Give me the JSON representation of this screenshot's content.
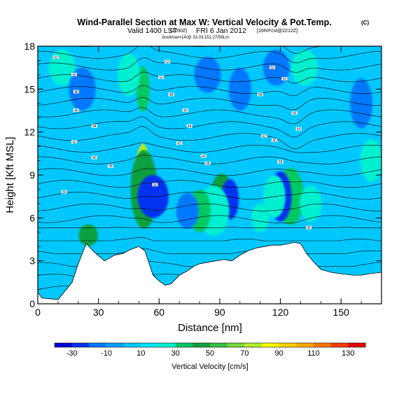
{
  "title": "Wind-Parallel Section at Max W: Vertical Velocity & Pot.Temp.",
  "title_mark": "(C)",
  "subtitle_valid": "Valid 1400 LST",
  "subtitle_utc": "(1200Z)",
  "subtitle_date": "FRI 6 Jan 2012",
  "subtitle_run": "[16hrFcst@2212Z]",
  "subtitle_small": "boxlimax=14/@ 33.03,151.27/58Lm",
  "chart_data": {
    "type": "heatmap",
    "xlabel": "Distance [nm]",
    "ylabel": "Height [Kft MSL]",
    "xlim": [
      0,
      170
    ],
    "ylim": [
      0,
      18
    ],
    "x_ticks": [
      "0",
      "30",
      "60",
      "90",
      "120",
      "150"
    ],
    "y_ticks": [
      "0",
      "3",
      "6",
      "9",
      "12",
      "15",
      "18"
    ],
    "colorbar_label": "Vertical Velocity [cm/s]",
    "colorbar_ticks": [
      "-30",
      "-10",
      "10",
      "30",
      "50",
      "70",
      "90",
      "110",
      "130"
    ],
    "colorbar_levels": [
      -40,
      -30,
      -20,
      -10,
      0,
      10,
      20,
      30,
      40,
      50,
      60,
      70,
      80,
      90,
      100,
      110,
      120,
      130,
      140
    ],
    "colorbar_colors": [
      "#0000dc",
      "#0032f0",
      "#0078ff",
      "#00a0ff",
      "#00c8ff",
      "#00e6ff",
      "#00f0d0",
      "#00c864",
      "#10a040",
      "#38c048",
      "#78d838",
      "#b4f028",
      "#ffff00",
      "#ffd200",
      "#ffaa00",
      "#ff7800",
      "#ff3c00",
      "#e60000"
    ],
    "terrain": [
      [
        0,
        0.8
      ],
      [
        2,
        0.4
      ],
      [
        10,
        0.3
      ],
      [
        17,
        1.5
      ],
      [
        20,
        2.8
      ],
      [
        22,
        3.5
      ],
      [
        24,
        4.2
      ],
      [
        28,
        3.6
      ],
      [
        33,
        3.0
      ],
      [
        38,
        3.4
      ],
      [
        42,
        3.5
      ],
      [
        46,
        3.8
      ],
      [
        50,
        4.0
      ],
      [
        53,
        3.7
      ],
      [
        57,
        2.0
      ],
      [
        60,
        1.6
      ],
      [
        63,
        1.3
      ],
      [
        66,
        1.4
      ],
      [
        70,
        2.0
      ],
      [
        74,
        2.3
      ],
      [
        77,
        2.6
      ],
      [
        80,
        2.8
      ],
      [
        84,
        2.9
      ],
      [
        88,
        3.0
      ],
      [
        92,
        3.1
      ],
      [
        96,
        3.0
      ],
      [
        100,
        3.4
      ],
      [
        104,
        3.7
      ],
      [
        108,
        3.9
      ],
      [
        112,
        4.0
      ],
      [
        116,
        4.1
      ],
      [
        120,
        4.1
      ],
      [
        124,
        4.2
      ],
      [
        127,
        4.3
      ],
      [
        130,
        4.2
      ],
      [
        133,
        3.5
      ],
      [
        136,
        3.0
      ],
      [
        140,
        2.4
      ],
      [
        145,
        2.2
      ],
      [
        150,
        2.1
      ],
      [
        156,
        2.0
      ],
      [
        160,
        2.0
      ],
      [
        164,
        2.1
      ],
      [
        170,
        2.2
      ]
    ],
    "velocity_features": [
      {
        "x": 51.5,
        "y": 8.5,
        "w": 0.8,
        "h": 4.0,
        "value": 120
      },
      {
        "x": 52,
        "y": 8.7,
        "w": 1.2,
        "h": 5.0,
        "value": 95
      },
      {
        "x": 52,
        "y": 8.5,
        "w": 2.0,
        "h": 5.2,
        "value": 70
      },
      {
        "x": 52.5,
        "y": 8.0,
        "w": 3.0,
        "h": 5.5,
        "value": 40
      },
      {
        "x": 52,
        "y": 15.0,
        "w": 1.5,
        "h": 3.2,
        "value": 35
      },
      {
        "x": 57,
        "y": 7.5,
        "w": 3.5,
        "h": 3.0,
        "value": -30
      },
      {
        "x": 91,
        "y": 7.5,
        "w": 1.5,
        "h": 2.4,
        "value": 60
      },
      {
        "x": 91,
        "y": 7.5,
        "w": 2.5,
        "h": 3.2,
        "value": 40
      },
      {
        "x": 95,
        "y": 7.3,
        "w": 2.0,
        "h": 2.8,
        "value": -30
      },
      {
        "x": 87,
        "y": 6.5,
        "w": 3.5,
        "h": 3.5,
        "value": 25
      },
      {
        "x": 126,
        "y": 8.0,
        "w": 1.5,
        "h": 2.8,
        "value": 55
      },
      {
        "x": 125,
        "y": 7.5,
        "w": 3.0,
        "h": 4.0,
        "value": 35
      },
      {
        "x": 120,
        "y": 7.5,
        "w": 2.5,
        "h": 3.5,
        "value": -25
      },
      {
        "x": 117,
        "y": 7.5,
        "w": 2.5,
        "h": 3.0,
        "value": 25
      },
      {
        "x": 135,
        "y": 7.0,
        "w": 2.5,
        "h": 2.5,
        "value": 20
      },
      {
        "x": 25,
        "y": 4.8,
        "w": 2.2,
        "h": 1.5,
        "value": 40
      },
      {
        "x": 80,
        "y": 6.5,
        "w": 2.5,
        "h": 3.0,
        "value": 30
      },
      {
        "x": 110,
        "y": 6.0,
        "w": 2.0,
        "h": 2.0,
        "value": 20
      },
      {
        "x": 74,
        "y": 6.5,
        "w": 2.5,
        "h": 2.5,
        "value": -15
      },
      {
        "x": 12,
        "y": 16.5,
        "w": 3.0,
        "h": 2.5,
        "value": 25
      },
      {
        "x": 22,
        "y": 15.0,
        "w": 3.0,
        "h": 3.0,
        "value": -20
      },
      {
        "x": 45,
        "y": 16.0,
        "w": 2.5,
        "h": 3.0,
        "value": 25
      },
      {
        "x": 84,
        "y": 16.0,
        "w": 3.0,
        "h": 2.5,
        "value": -15
      },
      {
        "x": 100,
        "y": 15.0,
        "w": 2.5,
        "h": 3.0,
        "value": -15
      },
      {
        "x": 118,
        "y": 16.5,
        "w": 3.0,
        "h": 2.5,
        "value": -20
      },
      {
        "x": 132,
        "y": 16.5,
        "w": 3.0,
        "h": 2.5,
        "value": 20
      },
      {
        "x": 160,
        "y": 14.0,
        "w": 2.5,
        "h": 3.5,
        "value": -15
      },
      {
        "x": 165,
        "y": 10.0,
        "w": 2.5,
        "h": 3.0,
        "value": 20
      }
    ],
    "isentrope_labels": [
      {
        "x": 9,
        "y": 17.2,
        "text": "52"
      },
      {
        "x": 18,
        "y": 16.0,
        "text": "50"
      },
      {
        "x": 19,
        "y": 14.8,
        "text": "48"
      },
      {
        "x": 19,
        "y": 13.5,
        "text": "46"
      },
      {
        "x": 28,
        "y": 12.4,
        "text": "44"
      },
      {
        "x": 18,
        "y": 11.3,
        "text": "42"
      },
      {
        "x": 28,
        "y": 10.2,
        "text": "40"
      },
      {
        "x": 36,
        "y": 9.6,
        "text": "38"
      },
      {
        "x": 13,
        "y": 7.8,
        "text": "36"
      },
      {
        "x": 64,
        "y": 16.9,
        "text": "52"
      },
      {
        "x": 61,
        "y": 15.8,
        "text": "50"
      },
      {
        "x": 66,
        "y": 14.6,
        "text": "48"
      },
      {
        "x": 73,
        "y": 13.5,
        "text": "46"
      },
      {
        "x": 75,
        "y": 12.4,
        "text": "44"
      },
      {
        "x": 70,
        "y": 11.2,
        "text": "42"
      },
      {
        "x": 82,
        "y": 10.3,
        "text": "40"
      },
      {
        "x": 84,
        "y": 9.8,
        "text": "38"
      },
      {
        "x": 58,
        "y": 8.3,
        "text": "36"
      },
      {
        "x": 116,
        "y": 16.5,
        "text": "52"
      },
      {
        "x": 122,
        "y": 15.7,
        "text": "50"
      },
      {
        "x": 110,
        "y": 14.6,
        "text": "48"
      },
      {
        "x": 127,
        "y": 13.3,
        "text": "46"
      },
      {
        "x": 129,
        "y": 12.2,
        "text": "44"
      },
      {
        "x": 112,
        "y": 11.7,
        "text": "42"
      },
      {
        "x": 117,
        "y": 11.4,
        "text": "40"
      },
      {
        "x": 120,
        "y": 9.9,
        "text": "38"
      },
      {
        "x": 134,
        "y": 5.3,
        "text": "36"
      }
    ]
  }
}
